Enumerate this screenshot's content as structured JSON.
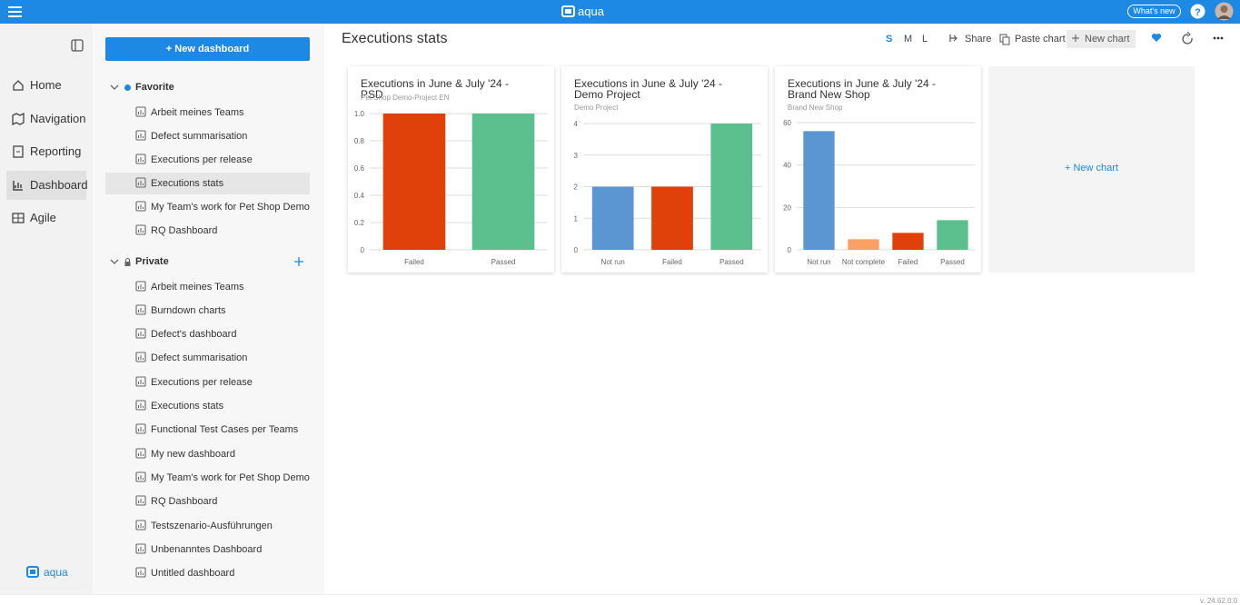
{
  "topbar": {
    "app_name": "aqua",
    "whats_new": "What's new"
  },
  "nav": {
    "items": [
      "Home",
      "Navigation",
      "Reporting",
      "Dashboard",
      "Agile"
    ],
    "footer": "aqua"
  },
  "sidebar": {
    "new_dashboard": "+ New dashboard",
    "favorite": {
      "title": "Favorite",
      "items": [
        "Arbeit meines Teams",
        "Defect summarisation",
        "Executions per release",
        "Executions stats",
        "My Team's work for Pet Shop Demo",
        "RQ Dashboard"
      ]
    },
    "private": {
      "title": "Private",
      "items": [
        "Arbeit meines Teams",
        "Burndown charts",
        "Defect's dashboard",
        "Defect summarisation",
        "Executions per release",
        "Executions stats",
        "Functional Test Cases per Teams",
        "My new dashboard",
        "My Team's work for Pet Shop Demo",
        "RQ Dashboard",
        "Testszenario-Ausführungen",
        "Unbenanntes Dashboard",
        "Untitled dashboard"
      ]
    }
  },
  "page": {
    "title": "Executions stats",
    "toolbar": {
      "sizes": [
        "S",
        "M",
        "L"
      ],
      "share": "Share",
      "paste_chart": "Paste chart",
      "new_chart": "New chart"
    }
  },
  "charts": [
    {
      "type": "bar",
      "title": "Executions in June & July '24 - PSD",
      "subtitle": "Pet Shop Demo-Project EN",
      "categories": [
        "Failed",
        "Passed"
      ],
      "values": [
        1,
        1
      ],
      "colors": [
        "#e0400a",
        "#5cbf8e"
      ],
      "ylim": [
        0,
        1
      ],
      "yticks": [
        0,
        0.2,
        0.4,
        0.6,
        0.8,
        {
          "value": 1,
          "label": "1.0"
        }
      ],
      "grid": true
    },
    {
      "type": "bar",
      "title": "Executions in June & July '24 - Demo Project",
      "subtitle": "Demo Project",
      "categories": [
        "Not run",
        "Failed",
        "Passed"
      ],
      "values": [
        2,
        2,
        4
      ],
      "colors": [
        "#5b96d3",
        "#e0400a",
        "#5cbf8e"
      ],
      "ylim": [
        0,
        4
      ],
      "yticks": [
        0,
        1,
        2,
        3,
        4
      ],
      "grid": true
    },
    {
      "type": "bar",
      "title": "Executions in June & July '24 - Brand New Shop",
      "subtitle": "Brand New Shop",
      "categories": [
        "Not run",
        "Not complete",
        "Failed",
        "Passed"
      ],
      "values": [
        56,
        5,
        8,
        14
      ],
      "colors": [
        "#5b96d3",
        "#f9a067",
        "#e0400a",
        "#5cbf8e"
      ],
      "ylim": [
        0,
        60
      ],
      "yticks": [
        0,
        20,
        40,
        60
      ],
      "grid": true
    }
  ],
  "placeholder": "+ New chart",
  "version": "v. 24.62.0.0"
}
